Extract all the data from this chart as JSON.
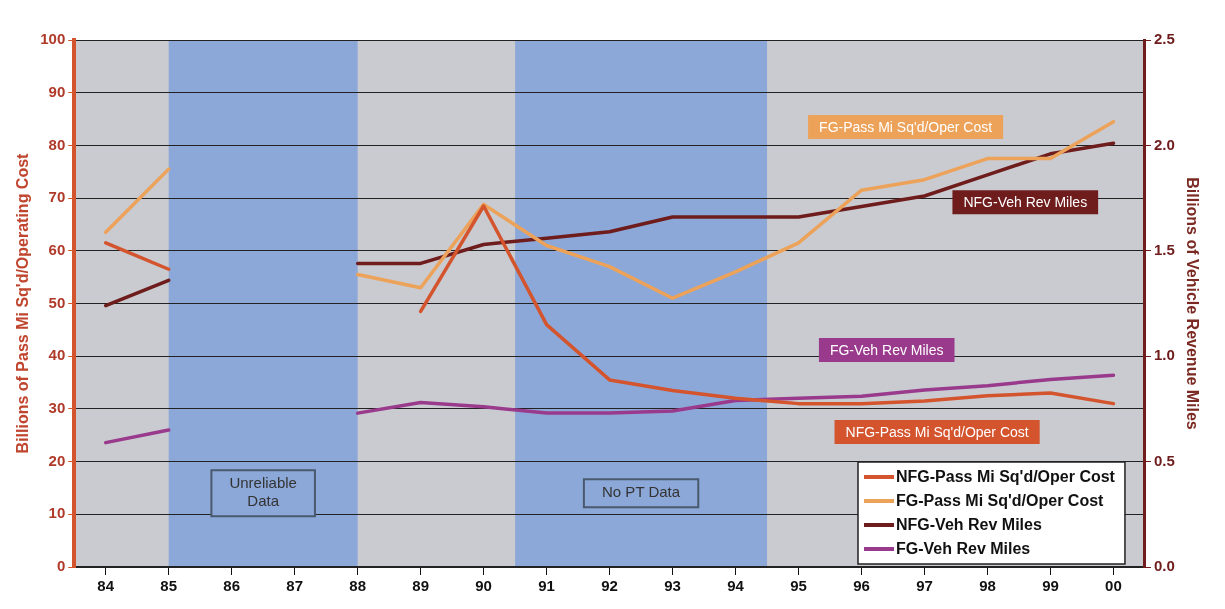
{
  "chart_data": {
    "type": "line",
    "ylabel": "Billions of Pass Mi Sq'd/Operating Cost",
    "y2label": "Billions of Vehicle Revenue Miles",
    "x": [
      1984,
      1985,
      1986,
      1987,
      1988,
      1989,
      1990,
      1991,
      1992,
      1993,
      1994,
      1995,
      1996,
      1997,
      1998,
      1999,
      2000
    ],
    "xlim": [
      1983.5,
      2000.5
    ],
    "xticks": [
      {
        "value": 1984,
        "label": "84"
      },
      {
        "value": 1985,
        "label": "85"
      },
      {
        "value": 1986,
        "label": "86"
      },
      {
        "value": 1987,
        "label": "87"
      },
      {
        "value": 1988,
        "label": "88"
      },
      {
        "value": 1989,
        "label": "89"
      },
      {
        "value": 1990,
        "label": "90"
      },
      {
        "value": 1991,
        "label": "91"
      },
      {
        "value": 1992,
        "label": "92"
      },
      {
        "value": 1993,
        "label": "93"
      },
      {
        "value": 1994,
        "label": "94"
      },
      {
        "value": 1995,
        "label": "95"
      },
      {
        "value": 1996,
        "label": "96"
      },
      {
        "value": 1997,
        "label": "97"
      },
      {
        "value": 1998,
        "label": "98"
      },
      {
        "value": 1999,
        "label": "99"
      },
      {
        "value": 2000,
        "label": "00"
      }
    ],
    "ylim": [
      0,
      100
    ],
    "yticks": [
      0,
      10,
      20,
      30,
      40,
      50,
      60,
      70,
      80,
      90,
      100
    ],
    "y2lim": [
      0,
      2.5
    ],
    "y2ticks": [
      {
        "value": 0,
        "label": "0.0"
      },
      {
        "value": 0.5,
        "label": "0.5"
      },
      {
        "value": 1,
        "label": "1.0"
      },
      {
        "value": 1.5,
        "label": "1.5"
      },
      {
        "value": 2,
        "label": "2.0"
      },
      {
        "value": 2.5,
        "label": "2.5"
      }
    ],
    "series": [
      {
        "name": "NFG-Pass Mi Sq'd/Oper Cost",
        "color": "#d4542e",
        "values": [
          61.5,
          56.5,
          null,
          null,
          null,
          48.5,
          68.5,
          46,
          35.5,
          33.5,
          32,
          31,
          31,
          31.5,
          32.5,
          33,
          31
        ]
      },
      {
        "name": "FG-Pass Mi Sq'd/Oper Cost",
        "color": "#eda25a",
        "values": [
          63.5,
          75.5,
          null,
          null,
          55.5,
          53,
          68.8,
          61,
          57,
          51,
          56,
          61.5,
          71.5,
          73.5,
          77.5,
          77.5,
          84.5
        ]
      },
      {
        "name": "NFG-Veh Rev Miles",
        "color": "#6e1c1c",
        "axis": "y2",
        "values": [
          1.24,
          1.36,
          null,
          null,
          1.44,
          1.44,
          1.53,
          1.56,
          1.59,
          1.66,
          1.66,
          1.66,
          1.71,
          1.76,
          1.86,
          1.96,
          2.01
        ]
      },
      {
        "name": "FG-Veh Rev Miles",
        "color": "#9a3a8c",
        "axis": "y2",
        "values": [
          0.59,
          0.65,
          null,
          null,
          0.73,
          0.78,
          0.76,
          0.73,
          0.73,
          0.74,
          0.79,
          0.8,
          0.81,
          0.84,
          0.86,
          0.89,
          0.91
        ]
      }
    ],
    "bands": [
      {
        "axis": "x",
        "from": 1985,
        "to": 1988,
        "label": "Unreliable Data",
        "color": "#8ca8d8"
      },
      {
        "axis": "x",
        "from": 1990.5,
        "to": 1994.5,
        "label": "No PT Data",
        "color": "#8ca8d8"
      }
    ],
    "grid": "y",
    "legend": "bottom right",
    "marker": "none",
    "line_style": "solid"
  }
}
